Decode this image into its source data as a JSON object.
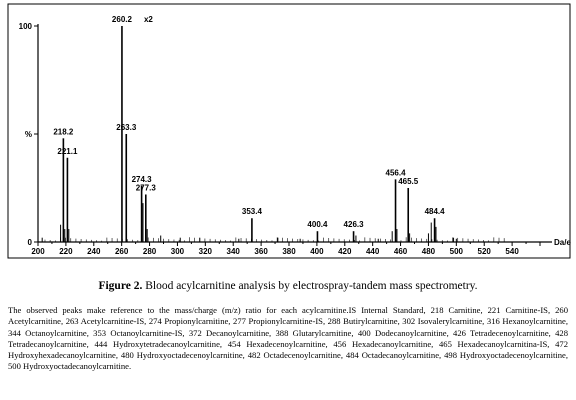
{
  "figure": {
    "caption_label": "Figure 2.",
    "caption_text": " Blood acylcarnitine analysis by electrospray-tandem mass spectrometry.",
    "description": "The observed peaks make reference to the mass/charge (m/z) ratio for each acylcarnitine.IS Internal Standard, 218 Carnitine, 221 Carnitine-IS, 260 Acetylcarnitine, 263 Acetylcarnitine-IS, 274 Propionylcarnitine, 277 Propionylcarnitine-IS, 288 Butirylcarnitine, 302 Isovalerylcarnitine, 316 Hexanoylcarnitine, 344 Octanoylcarnitine, 353 Octanoylcarnitine-IS, 372 Decanoylcarnitine, 388 Glutarylcarnitine, 400 Dodecanoylcarnitine, 426 Tetradecenoylcarnitine, 428 Tetradecanoylcarnitine, 444 Hydroxytetradecanoylcarnitine, 454 Hexadecenoylcarnitine, 456 Hexadecanoylcarnitine, 465 Hexadecanoylcarnitina-IS, 472 Hydroxyhexadecanoylcarnitine, 480 Hydroxyoctadecenoylcarnitine, 482 Octadecenoylcarnitine, 484 Octadecanoylcarnitine, 498 Hydroxyoctadecenoylcarnitine, 500 Hydroxyoctadecanoylcarnitine."
  },
  "chart_data": {
    "type": "bar",
    "xlabel": "Da/e",
    "xlim": [
      200,
      560
    ],
    "ylim": [
      0,
      100
    ],
    "x_ticks": [
      "200",
      "220",
      "240",
      "260",
      "280",
      "300",
      "320",
      "340",
      "360",
      "380",
      "400",
      "420",
      "440",
      "460",
      "480",
      "500",
      "520",
      "540"
    ],
    "y_ticks": [
      {
        "value": 100,
        "label": "100"
      },
      {
        "value": 50,
        "label": "%"
      },
      {
        "value": 0,
        "label": "0"
      }
    ],
    "zoom_marker": "x2",
    "peaks": [
      {
        "mz": 218.2,
        "intensity": 48,
        "label": "218.2"
      },
      {
        "mz": 221.1,
        "intensity": 39,
        "label": "221.1"
      },
      {
        "mz": 260.2,
        "intensity": 100,
        "label": "260.2"
      },
      {
        "mz": 263.3,
        "intensity": 50,
        "label": "263.3"
      },
      {
        "mz": 274.3,
        "intensity": 26,
        "label": "274.3"
      },
      {
        "mz": 277.3,
        "intensity": 22,
        "label": "277.3"
      },
      {
        "mz": 353.4,
        "intensity": 11,
        "label": "353.4"
      },
      {
        "mz": 400.4,
        "intensity": 5,
        "label": "400.4"
      },
      {
        "mz": 426.3,
        "intensity": 5,
        "label": "426.3"
      },
      {
        "mz": 456.4,
        "intensity": 29,
        "label": "456.4"
      },
      {
        "mz": 465.5,
        "intensity": 25,
        "label": "465.5"
      },
      {
        "mz": 484.4,
        "intensity": 11,
        "label": "484.4"
      }
    ],
    "minor_peaks": [
      {
        "mz": 203,
        "intensity": 2
      },
      {
        "mz": 216.2,
        "intensity": 8
      },
      {
        "mz": 219.2,
        "intensity": 6
      },
      {
        "mz": 222.1,
        "intensity": 6
      },
      {
        "mz": 275.3,
        "intensity": 18
      },
      {
        "mz": 278.3,
        "intensity": 6
      },
      {
        "mz": 288,
        "intensity": 3
      },
      {
        "mz": 302,
        "intensity": 2
      },
      {
        "mz": 316,
        "intensity": 2
      },
      {
        "mz": 344,
        "intensity": 1.5
      },
      {
        "mz": 372,
        "intensity": 2
      },
      {
        "mz": 388,
        "intensity": 1.5
      },
      {
        "mz": 428,
        "intensity": 3
      },
      {
        "mz": 444,
        "intensity": 1.5
      },
      {
        "mz": 454,
        "intensity": 5
      },
      {
        "mz": 457.4,
        "intensity": 6
      },
      {
        "mz": 466.5,
        "intensity": 4
      },
      {
        "mz": 480,
        "intensity": 4
      },
      {
        "mz": 482,
        "intensity": 9
      },
      {
        "mz": 485.4,
        "intensity": 7
      },
      {
        "mz": 498,
        "intensity": 2
      },
      {
        "mz": 500,
        "intensity": 1.5
      }
    ]
  }
}
